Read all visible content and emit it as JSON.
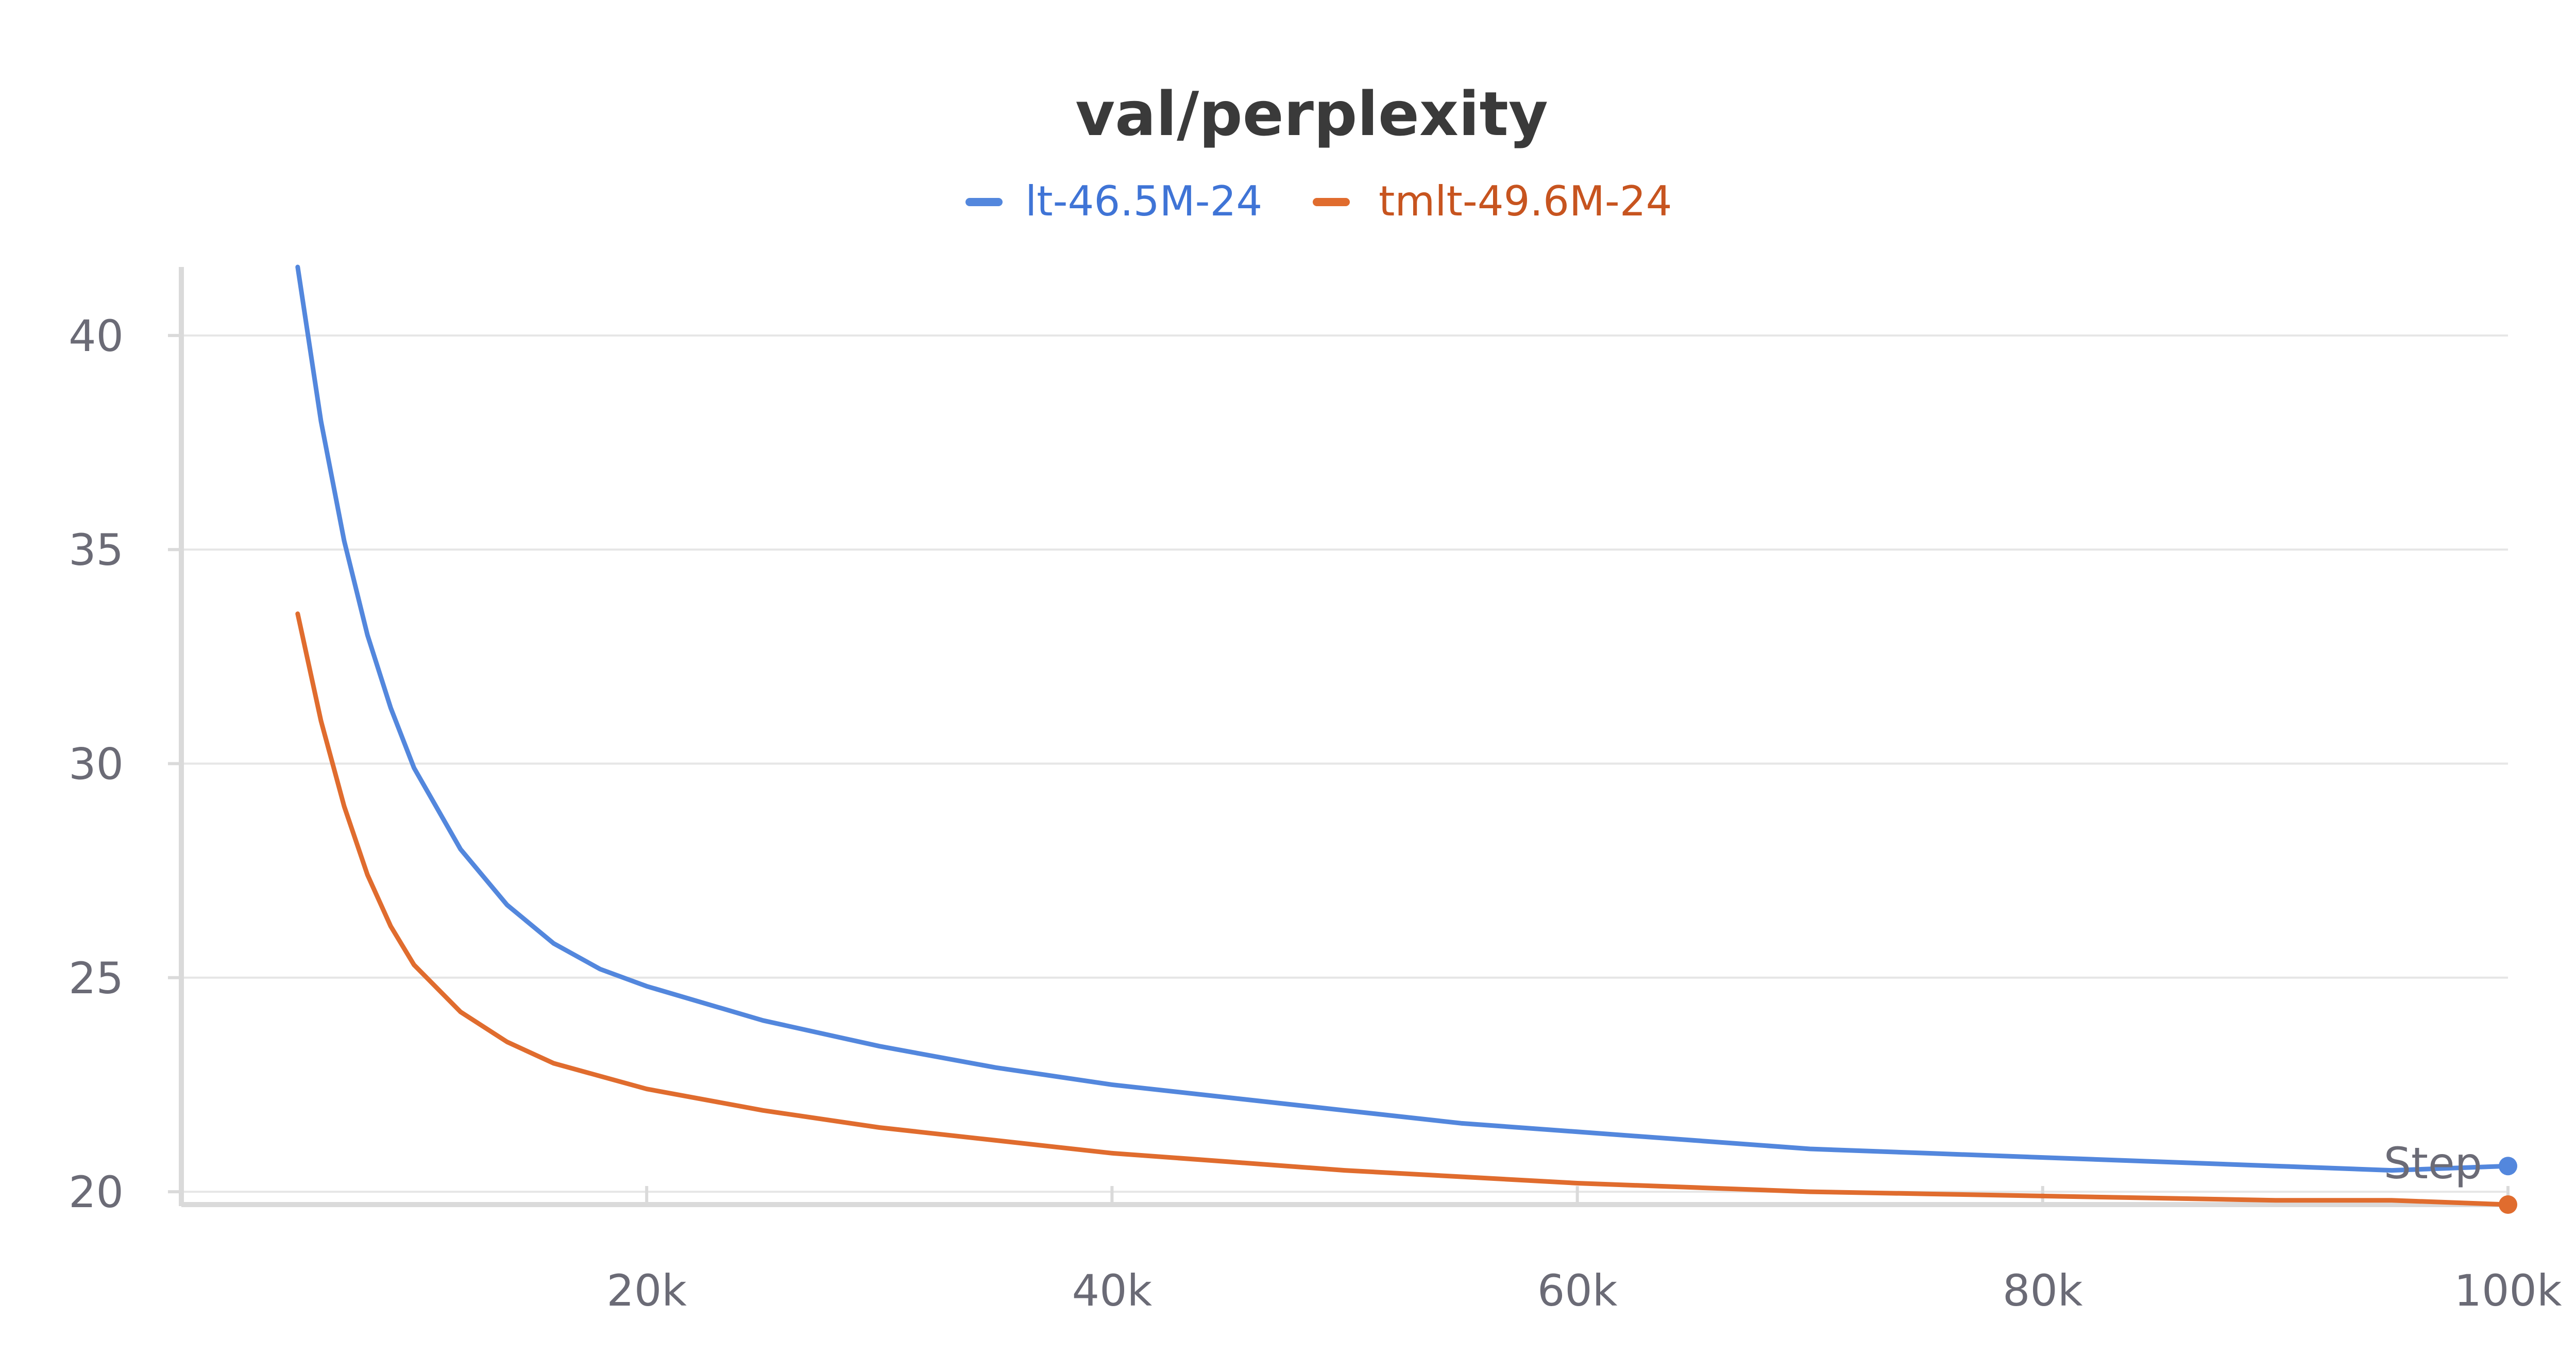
{
  "chart_data": {
    "type": "line",
    "title": "val/perplexity",
    "xlabel": "Step",
    "ylabel": "",
    "xlim": [
      0,
      100000
    ],
    "ylim": [
      19.7,
      41.6
    ],
    "x_ticks": [
      20000,
      40000,
      60000,
      80000,
      100000
    ],
    "x_tick_labels": [
      "20k",
      "40k",
      "60k",
      "80k",
      "100k"
    ],
    "y_ticks": [
      20,
      25,
      30,
      35,
      40
    ],
    "y_tick_labels": [
      "20",
      "25",
      "30",
      "35",
      "40"
    ],
    "grid": "horizontal",
    "legend_position": "top-center",
    "x": [
      5000,
      6000,
      7000,
      8000,
      9000,
      10000,
      12000,
      14000,
      16000,
      18000,
      20000,
      25000,
      30000,
      35000,
      40000,
      45000,
      50000,
      55000,
      60000,
      65000,
      70000,
      75000,
      80000,
      85000,
      90000,
      95000,
      100000
    ],
    "series": [
      {
        "name": "lt-46.5M-24",
        "color": "#5387dd",
        "values": [
          41.6,
          38.0,
          35.2,
          33.0,
          31.3,
          29.9,
          28.0,
          26.7,
          25.8,
          25.2,
          24.8,
          24.0,
          23.4,
          22.9,
          22.5,
          22.2,
          21.9,
          21.6,
          21.4,
          21.2,
          21.0,
          20.9,
          20.8,
          20.7,
          20.6,
          20.5,
          20.6
        ]
      },
      {
        "name": "tmlt-49.6M-24",
        "color": "#e06c2e",
        "values": [
          33.5,
          31.0,
          29.0,
          27.4,
          26.2,
          25.3,
          24.2,
          23.5,
          23.0,
          22.7,
          22.4,
          21.9,
          21.5,
          21.2,
          20.9,
          20.7,
          20.5,
          20.35,
          20.2,
          20.1,
          20.0,
          19.95,
          19.9,
          19.85,
          19.8,
          19.8,
          19.7
        ]
      }
    ]
  },
  "legend": [
    {
      "label": "lt-46.5M-24",
      "color": "#5387dd",
      "text_color": "#3f74d6"
    },
    {
      "label": "tmlt-49.6M-24",
      "color": "#e06c2e",
      "text_color": "#c7541f"
    }
  ],
  "colors": {
    "grid": "#e6e6e6",
    "axis": "#dadada",
    "tick_text": "#6b6b76",
    "title": "#3a3a3a"
  }
}
